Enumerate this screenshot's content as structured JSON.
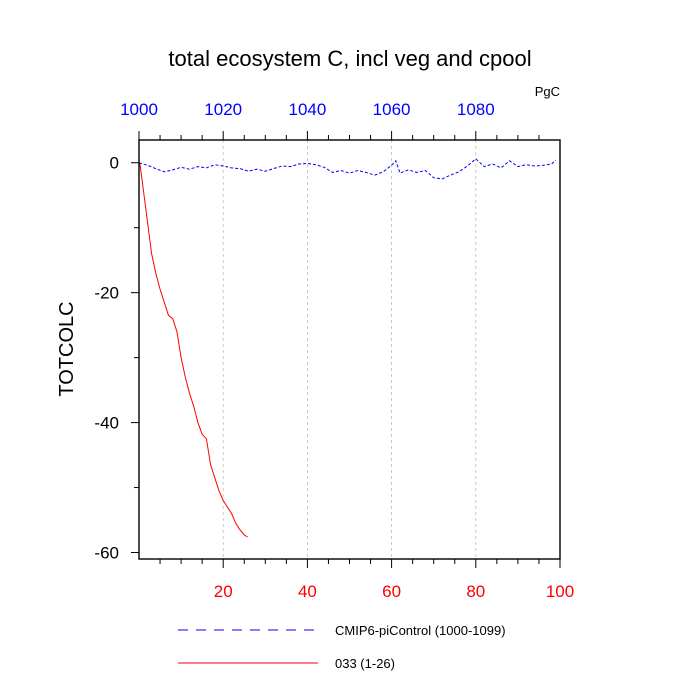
{
  "chart_data": {
    "type": "line",
    "title": "total ecosystem C, incl veg and cpool",
    "units": "PgC",
    "ylabel": "TOTCOLC",
    "ylim": [
      -61,
      3.5
    ],
    "y_ticks": [
      0,
      -20,
      -40,
      -60
    ],
    "y_tick_labels": [
      "0",
      "-20",
      "-40",
      "-60"
    ],
    "x_bottom": {
      "lim": [
        0,
        100
      ],
      "ticks": [
        20,
        40,
        60,
        80,
        100
      ],
      "tick_labels": [
        "20",
        "40",
        "60",
        "80",
        "100"
      ],
      "color": "#ff0000"
    },
    "x_top": {
      "lim": [
        1000,
        1100
      ],
      "ticks": [
        1000,
        1020,
        1040,
        1060,
        1080
      ],
      "tick_labels": [
        "1000",
        "1020",
        "1040",
        "1060",
        "1080"
      ],
      "color": "#0000ff"
    },
    "grid": "vertical-dashed",
    "series": [
      {
        "name": "CMIP6-piControl (1000-1099)",
        "axis": "top",
        "color": "#0000ff",
        "style": "dashed",
        "x": [
          1000,
          1002,
          1004,
          1006,
          1008,
          1010,
          1012,
          1014,
          1016,
          1018,
          1020,
          1022,
          1024,
          1026,
          1028,
          1030,
          1032,
          1034,
          1036,
          1038,
          1040,
          1042,
          1044,
          1046,
          1048,
          1050,
          1052,
          1054,
          1056,
          1058,
          1060,
          1061,
          1062,
          1064,
          1066,
          1068,
          1070,
          1072,
          1074,
          1076,
          1078,
          1080,
          1082,
          1084,
          1086,
          1088,
          1090,
          1092,
          1094,
          1096,
          1098,
          1099
        ],
        "y": [
          0.0,
          -0.4,
          -0.9,
          -1.4,
          -1.1,
          -0.7,
          -1.0,
          -0.6,
          -0.8,
          -0.3,
          -0.5,
          -0.8,
          -0.9,
          -1.3,
          -1.0,
          -1.3,
          -0.9,
          -0.5,
          -0.6,
          -0.2,
          -0.1,
          -0.3,
          -0.7,
          -1.5,
          -1.2,
          -1.6,
          -1.2,
          -1.5,
          -1.9,
          -1.4,
          -0.4,
          0.3,
          -1.6,
          -1.1,
          -1.5,
          -1.2,
          -2.3,
          -2.5,
          -1.9,
          -1.4,
          -0.5,
          0.6,
          -0.6,
          -0.2,
          -0.8,
          0.3,
          -0.6,
          -0.3,
          -0.5,
          -0.4,
          -0.2,
          0.4
        ]
      },
      {
        "name": "033 (1-26)",
        "axis": "bottom",
        "color": "#ff0000",
        "style": "solid",
        "x": [
          0.2,
          1,
          2,
          3,
          4,
          5,
          6,
          7,
          8,
          9,
          10,
          11,
          12,
          13,
          14,
          15,
          16,
          17,
          18,
          19,
          20,
          21,
          22,
          23,
          24,
          25,
          25.8
        ],
        "y": [
          0,
          -4,
          -9,
          -14,
          -17,
          -19.5,
          -21.5,
          -23.5,
          -24,
          -26,
          -30,
          -33,
          -35.5,
          -37.5,
          -40,
          -41.8,
          -42.5,
          -46.5,
          -48.5,
          -50.5,
          -52,
          -53,
          -54,
          -55.5,
          -56.5,
          -57.3,
          -57.6
        ]
      }
    ],
    "legend": {
      "placement": "bottom",
      "entries": [
        {
          "label": "CMIP6-piControl (1000-1099)",
          "color": "#0000ff",
          "style": "dashed"
        },
        {
          "label": "033 (1-26)",
          "color": "#ff0000",
          "style": "solid"
        }
      ]
    }
  }
}
